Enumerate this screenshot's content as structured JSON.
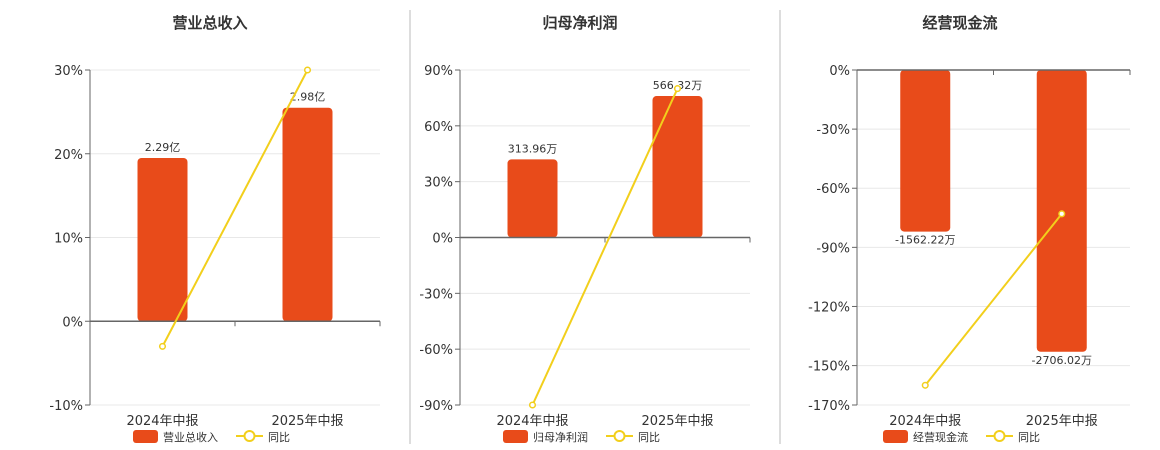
{
  "colors": {
    "bar": "#E84B1A",
    "line": "#F2CF1C",
    "grid": "#E8E8E8",
    "axis": "#666666",
    "divider": "#BBBBBB"
  },
  "chart_data": [
    {
      "type": "bar",
      "title": "营业总收入",
      "categories": [
        "2024年中报",
        "2025年中报"
      ],
      "series": [
        {
          "name": "营业总收入",
          "type": "bar",
          "data_labels": [
            "2.29亿",
            "2.98亿"
          ]
        },
        {
          "name": "同比",
          "type": "line",
          "values": [
            -3,
            30
          ]
        }
      ],
      "bar_heights_pct": [
        19.5,
        25.5
      ],
      "ylim": [
        -10,
        30
      ],
      "yticks": [
        -10,
        0,
        10,
        20,
        30
      ],
      "ytick_labels": [
        "-10%",
        "0%",
        "10%",
        "20%",
        "30%"
      ],
      "grid": true,
      "legend_position": "bottom"
    },
    {
      "type": "bar",
      "title": "归母净利润",
      "categories": [
        "2024年中报",
        "2025年中报"
      ],
      "series": [
        {
          "name": "归母净利润",
          "type": "bar",
          "data_labels": [
            "313.96万",
            "566.32万"
          ]
        },
        {
          "name": "同比",
          "type": "line",
          "values": [
            -90,
            80
          ]
        }
      ],
      "bar_heights_pct": [
        42,
        76
      ],
      "ylim": [
        -90,
        90
      ],
      "yticks": [
        -90,
        -60,
        -30,
        0,
        30,
        60,
        90
      ],
      "ytick_labels": [
        "-90%",
        "-60%",
        "-30%",
        "0%",
        "30%",
        "60%",
        "90%"
      ],
      "grid": true,
      "legend_position": "bottom"
    },
    {
      "type": "bar",
      "title": "经营现金流",
      "categories": [
        "2024年中报",
        "2025年中报"
      ],
      "series": [
        {
          "name": "经营现金流",
          "type": "bar",
          "data_labels": [
            "-1562.22万",
            "-2706.02万"
          ]
        },
        {
          "name": "同比",
          "type": "line",
          "values": [
            -160,
            -73
          ]
        }
      ],
      "bar_heights_pct": [
        -82,
        -143
      ],
      "ylim": [
        -170,
        0
      ],
      "yticks": [
        -170,
        -150,
        -120,
        -90,
        -60,
        -30,
        0
      ],
      "ytick_labels": [
        "-170%",
        "-150%",
        "-120%",
        "-90%",
        "-60%",
        "-30%",
        "0%"
      ],
      "grid": true,
      "legend_position": "bottom"
    }
  ]
}
